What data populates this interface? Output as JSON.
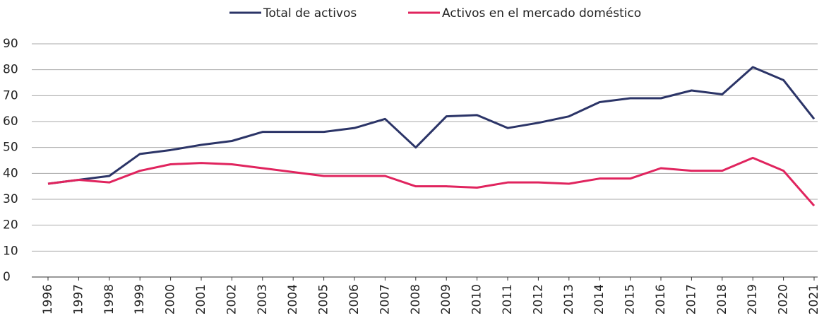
{
  "chart_data": {
    "type": "line",
    "categories": [
      "1996",
      "1997",
      "1998",
      "1999",
      "2000",
      "2001",
      "2002",
      "2003",
      "2004",
      "2005",
      "2006",
      "2007",
      "2008",
      "2009",
      "2010",
      "2011",
      "2012",
      "2013",
      "2014",
      "2015",
      "2016",
      "2017",
      "2018",
      "2019",
      "2020",
      "2021"
    ],
    "series": [
      {
        "name": "Total de activos",
        "color": "#2b3467",
        "values": [
          36,
          37.5,
          39,
          47.5,
          49,
          51,
          52.5,
          56,
          56,
          56,
          57.5,
          61,
          50,
          62,
          62.5,
          57.5,
          59.5,
          62,
          67.5,
          69,
          69,
          72,
          70.5,
          81,
          76,
          61
        ]
      },
      {
        "name": "Activos en el mercado doméstico",
        "color": "#e0245e",
        "values": [
          36,
          37.5,
          36.5,
          41,
          43.5,
          44,
          43.5,
          42,
          40.5,
          39,
          39,
          39,
          35,
          35,
          34.5,
          36.5,
          36.5,
          36,
          38,
          38,
          42,
          41,
          41,
          46,
          41,
          27.5
        ]
      }
    ],
    "ylim": [
      0,
      90
    ],
    "yticks": [
      0,
      10,
      20,
      30,
      40,
      50,
      60,
      70,
      80,
      90
    ],
    "grid": true,
    "legend": "top"
  }
}
